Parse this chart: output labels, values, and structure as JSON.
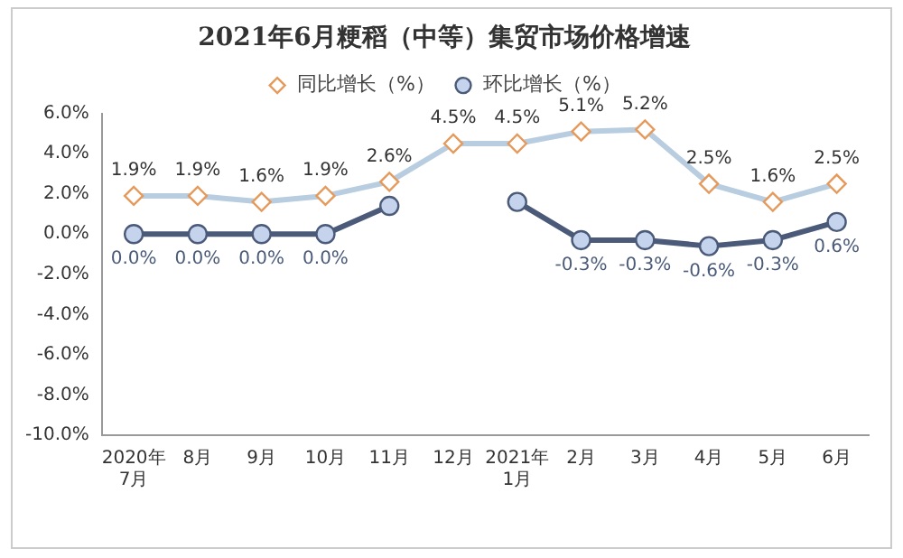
{
  "chart_data": {
    "type": "line",
    "title": "2021年6月粳稻（中等）集贸市场价格增速",
    "categories": [
      "2020年\n7月",
      "8月",
      "9月",
      "10月",
      "11月",
      "12月",
      "2021年\n1月",
      "2月",
      "3月",
      "4月",
      "5月",
      "6月"
    ],
    "series": [
      {
        "name": "同比增长（%）",
        "color": "#b9cde0",
        "marker": "diamond",
        "values": [
          1.9,
          1.9,
          1.6,
          1.9,
          2.6,
          4.5,
          4.5,
          5.1,
          5.2,
          2.5,
          1.6,
          2.5
        ],
        "value_labels": [
          "1.9%",
          "1.9%",
          "1.6%",
          "1.9%",
          "2.6%",
          "4.5%",
          "4.5%",
          "5.1%",
          "5.2%",
          "2.5%",
          "1.6%",
          "2.5%"
        ]
      },
      {
        "name": "环比增长（%）",
        "color": "#4a5a78",
        "marker": "circle",
        "values": [
          0.0,
          0.0,
          0.0,
          0.0,
          1.4,
          null,
          1.6,
          -0.3,
          -0.3,
          -0.6,
          -0.3,
          0.6
        ],
        "value_labels": [
          "0.0%",
          "0.0%",
          "0.0%",
          "0.0%",
          null,
          null,
          null,
          "-0.3%",
          "-0.3%",
          "-0.6%",
          "-0.3%",
          "0.6%"
        ]
      }
    ],
    "ylim": [
      -10,
      6
    ],
    "yticks": [
      {
        "value": -10,
        "label": "-10.0%"
      },
      {
        "value": -8,
        "label": "-8.0%"
      },
      {
        "value": -6,
        "label": "-6.0%"
      },
      {
        "value": -4,
        "label": "-4.0%"
      },
      {
        "value": -2,
        "label": "-2.0%"
      },
      {
        "value": 0,
        "label": "0.0%"
      },
      {
        "value": 2,
        "label": "2.0%"
      },
      {
        "value": 4,
        "label": "4.0%"
      },
      {
        "value": 6,
        "label": "6.0%"
      }
    ],
    "grid": false,
    "legend": "top"
  }
}
